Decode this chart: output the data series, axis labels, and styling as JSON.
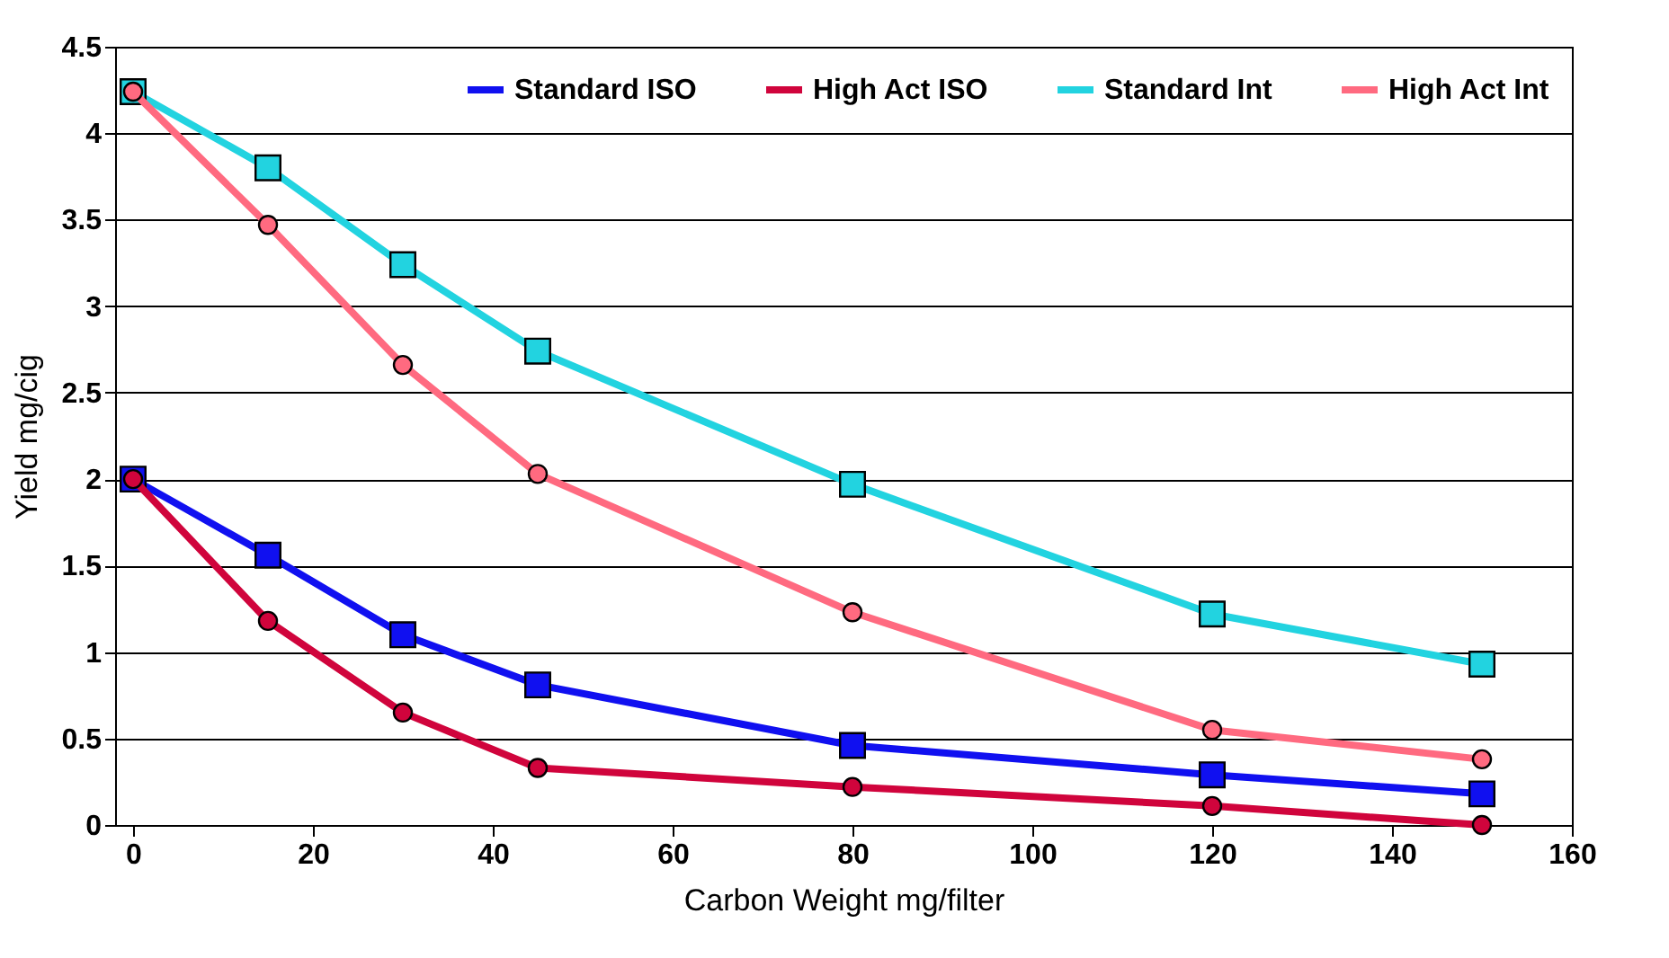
{
  "chart_data": {
    "type": "line",
    "xlabel": "Carbon Weight mg/filter",
    "ylabel": "Yield mg/cig",
    "x": [
      0,
      15,
      30,
      45,
      80,
      120,
      150
    ],
    "xlim": [
      -2,
      160
    ],
    "xticks": [
      0,
      20,
      40,
      60,
      80,
      100,
      120,
      140,
      160
    ],
    "ylim": [
      0,
      4.5
    ],
    "yticks": [
      0,
      0.5,
      1,
      1.5,
      2,
      2.5,
      3,
      3.5,
      4,
      4.5
    ],
    "grid": "y",
    "legend": "top right",
    "series": [
      {
        "name": "Standard ISO",
        "color": "#1010f0",
        "marker": "square",
        "values": [
          2.0,
          1.56,
          1.1,
          0.81,
          0.46,
          0.29,
          0.18
        ]
      },
      {
        "name": "High Act ISO",
        "color": "#d0043c",
        "marker": "circle",
        "values": [
          2.0,
          1.18,
          0.65,
          0.33,
          0.22,
          0.11,
          0.0
        ]
      },
      {
        "name": "Standard Int",
        "color": "#22d3e0",
        "marker": "square",
        "values": [
          4.24,
          3.8,
          3.24,
          2.74,
          1.97,
          1.22,
          0.93
        ]
      },
      {
        "name": "High Act Int",
        "color": "#ff6a80",
        "marker": "circle",
        "values": [
          4.24,
          3.47,
          2.66,
          2.03,
          1.23,
          0.55,
          0.38
        ]
      }
    ]
  }
}
